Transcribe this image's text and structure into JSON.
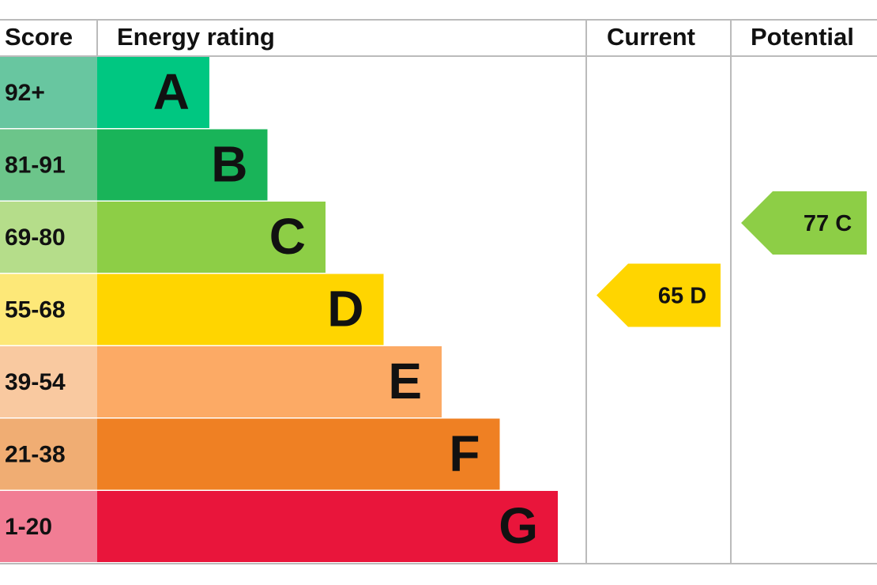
{
  "header": {
    "score": "Score",
    "rating": "Energy rating",
    "current": "Current",
    "potential": "Potential"
  },
  "bands": [
    {
      "score": "92+",
      "letter": "A",
      "color": "#00c781",
      "score_color": "#68c6a0"
    },
    {
      "score": "81-91",
      "letter": "B",
      "color": "#19b459",
      "score_color": "#6cc58a"
    },
    {
      "score": "69-80",
      "letter": "C",
      "color": "#8dce46",
      "score_color": "#b5dd8a"
    },
    {
      "score": "55-68",
      "letter": "D",
      "color": "#ffd500",
      "score_color": "#fde878"
    },
    {
      "score": "39-54",
      "letter": "E",
      "color": "#fcaa65",
      "score_color": "#f9c9a0"
    },
    {
      "score": "21-38",
      "letter": "F",
      "color": "#ef8023",
      "score_color": "#f0ad73"
    },
    {
      "score": "1-20",
      "letter": "G",
      "color": "#e9153b",
      "score_color": "#f17d94"
    }
  ],
  "current": {
    "score": 65,
    "rating": "D"
  },
  "potential": {
    "score": 77,
    "rating": "C"
  }
}
